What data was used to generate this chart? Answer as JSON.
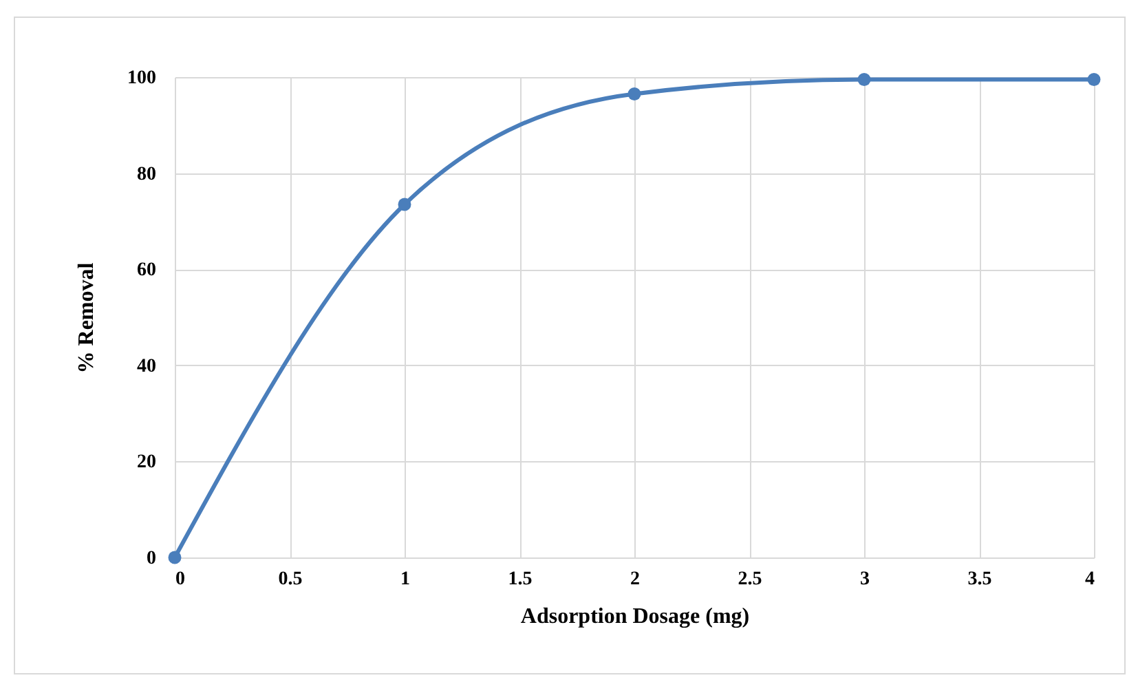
{
  "chart_data": {
    "type": "line",
    "xlabel": "Adsorption Dosage (mg)",
    "ylabel": "% Removal",
    "x": [
      0,
      1,
      2,
      3,
      4
    ],
    "series": [
      {
        "color": "#4a7ebb",
        "values": [
          0,
          73.5,
          96.5,
          99.5,
          99.5
        ]
      }
    ],
    "xlim": [
      0,
      4
    ],
    "xticks": [
      0,
      0.5,
      1,
      1.5,
      2,
      2.5,
      3,
      3.5,
      4
    ],
    "ylim": [
      0,
      100
    ],
    "yticks": [
      0,
      20,
      40,
      60,
      80,
      100
    ],
    "grid": true,
    "marker": "circle",
    "line_style": "solid"
  }
}
